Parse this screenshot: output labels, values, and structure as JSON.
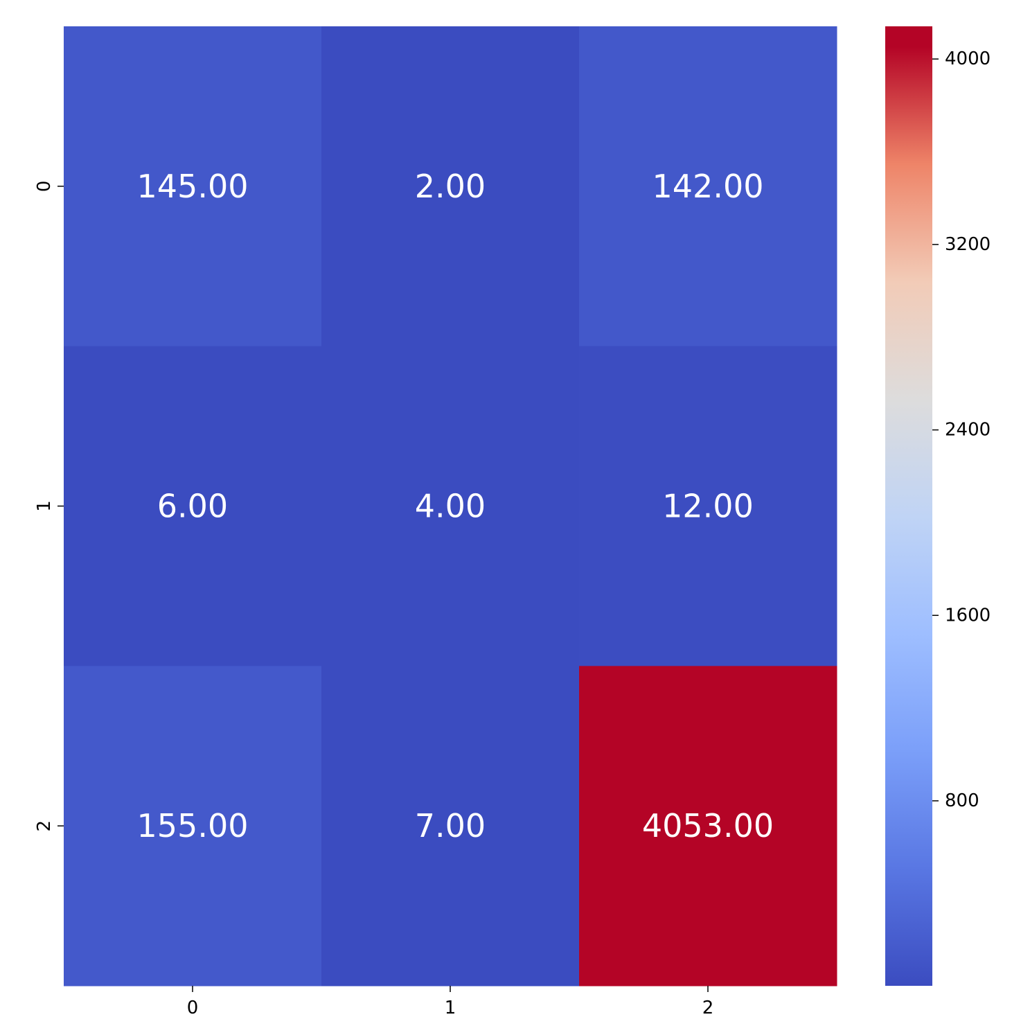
{
  "chart_data": {
    "type": "heatmap",
    "title": "",
    "xlabel": "",
    "ylabel": "",
    "x_tick_labels": [
      "0",
      "1",
      "2"
    ],
    "y_tick_labels": [
      "0",
      "1",
      "2"
    ],
    "values": [
      [
        145,
        2,
        142
      ],
      [
        6,
        4,
        12
      ],
      [
        155,
        7,
        4053
      ]
    ],
    "cell_labels": [
      [
        "145.00",
        "2.00",
        "142.00"
      ],
      [
        "6.00",
        "4.00",
        "12.00"
      ],
      [
        "155.00",
        "7.00",
        "4053.00"
      ]
    ],
    "colormap": "coolwarm",
    "color_range": [
      2,
      4053
    ],
    "colorbar": {
      "ticks": [
        800,
        1600,
        2400,
        3200,
        4000
      ],
      "tick_labels": [
        "800",
        "1600",
        "2400",
        "3200",
        "4000"
      ],
      "placement": "right"
    },
    "colors": {
      "low": "#3b4cc0",
      "mid": "#dddddd",
      "high": "#b40426",
      "cell_text": "#ffffff"
    }
  }
}
